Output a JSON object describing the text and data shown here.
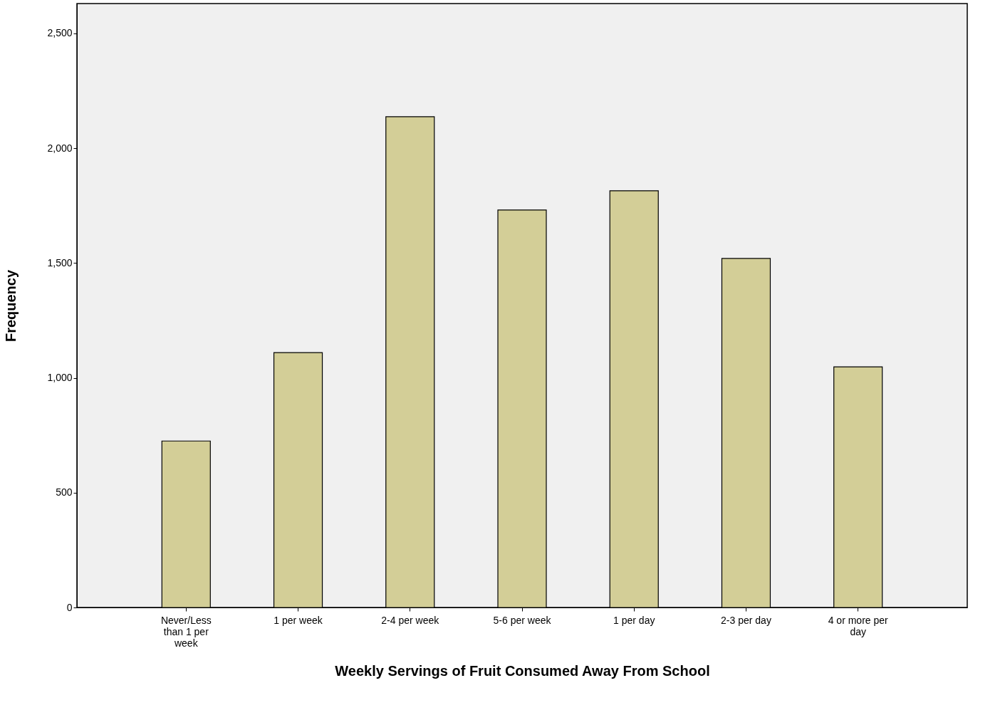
{
  "chart_data": {
    "type": "bar",
    "categories": [
      "Never/Less than 1 per week",
      "1 per week",
      "2-4 per week",
      "5-6 per week",
      "1 per day",
      "2-3 per day",
      "4 or more per day"
    ],
    "values": [
      725,
      1110,
      2137,
      1731,
      1815,
      1520,
      1048
    ],
    "color": "#d3ce97",
    "xlabel": "Weekly Servings of Fruit Consumed Away From School",
    "ylabel": "Frequency",
    "ylim": [
      0,
      2630
    ],
    "yticks": [
      0,
      {
        "value": 500,
        "label": "500"
      },
      {
        "value": 1000,
        "label": "1,000"
      },
      {
        "value": 1500,
        "label": "1,500"
      },
      {
        "value": 2000,
        "label": "2,000"
      },
      {
        "value": 2500,
        "label": "2,500"
      }
    ],
    "grid": false
  }
}
